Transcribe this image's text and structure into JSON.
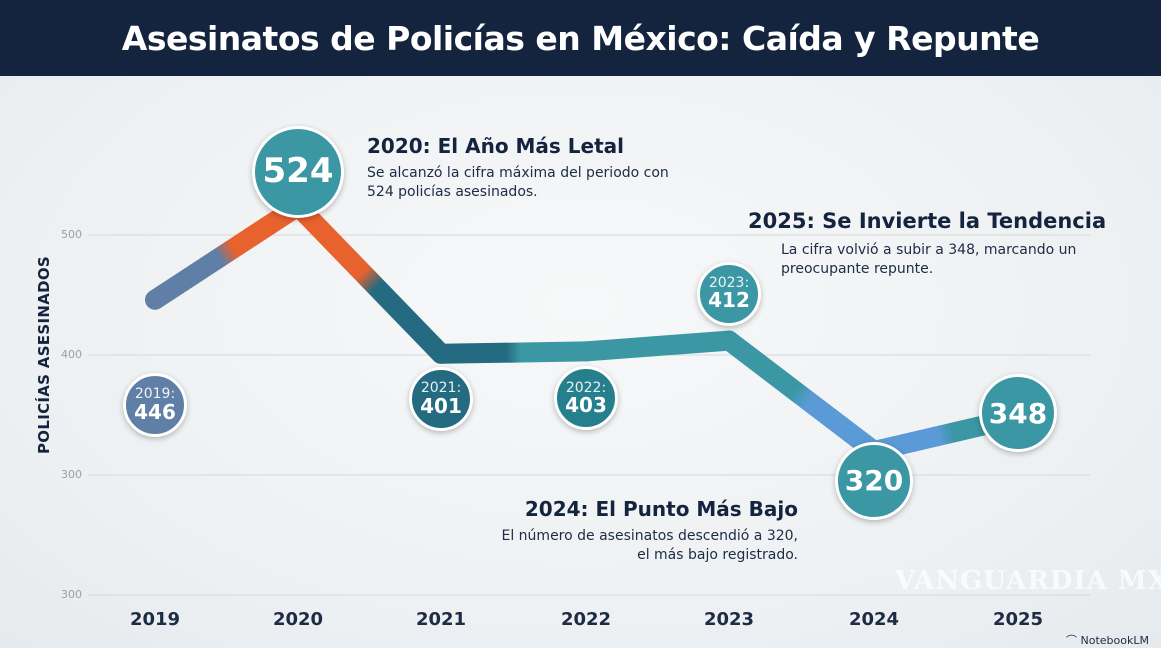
{
  "title": "Asesinatos de Policías en México: Caída y Repunte",
  "chart_data": {
    "type": "line",
    "title": "Asesinatos de Policías en México: Caída y Repunte",
    "xlabel": "",
    "ylabel": "POLICÍAS ASESINADOS",
    "categories": [
      "2019",
      "2020",
      "2021",
      "2022",
      "2023",
      "2024",
      "2025"
    ],
    "values": [
      446,
      524,
      401,
      403,
      412,
      320,
      348
    ],
    "y_tick_labels": [
      "500",
      "400",
      "300",
      "300"
    ],
    "grid": true,
    "point_labels": [
      {
        "year": "2019:",
        "value": "446"
      },
      {
        "year": "",
        "value": "524"
      },
      {
        "year": "2021:",
        "value": "401"
      },
      {
        "year": "2022:",
        "value": "403"
      },
      {
        "year": "2023:",
        "value": "412"
      },
      {
        "year": "",
        "value": "320"
      },
      {
        "year": "",
        "value": "348"
      }
    ],
    "colors": {
      "slate": "#5f7fa6",
      "orange": "#e8622e",
      "dark_teal": "#246a80",
      "teal": "#3a97a3",
      "light_blue": "#5a9ad6"
    }
  },
  "annotations": [
    {
      "title": "2020: El Año Más Letal",
      "text": "Se alcanzó la cifra máxima del periodo con 524 policías asesinados."
    },
    {
      "title": "2025: Se Invierte la Tendencia",
      "text": "La cifra volvió a subir a 348, marcando un preocupante repunte."
    },
    {
      "title": "2024: El Punto Más Bajo",
      "text": "El número de asesinatos descendió a 320, el más bajo registrado."
    }
  ],
  "watermark": "VANGUARDIA MX",
  "logo": "NotebookLM"
}
